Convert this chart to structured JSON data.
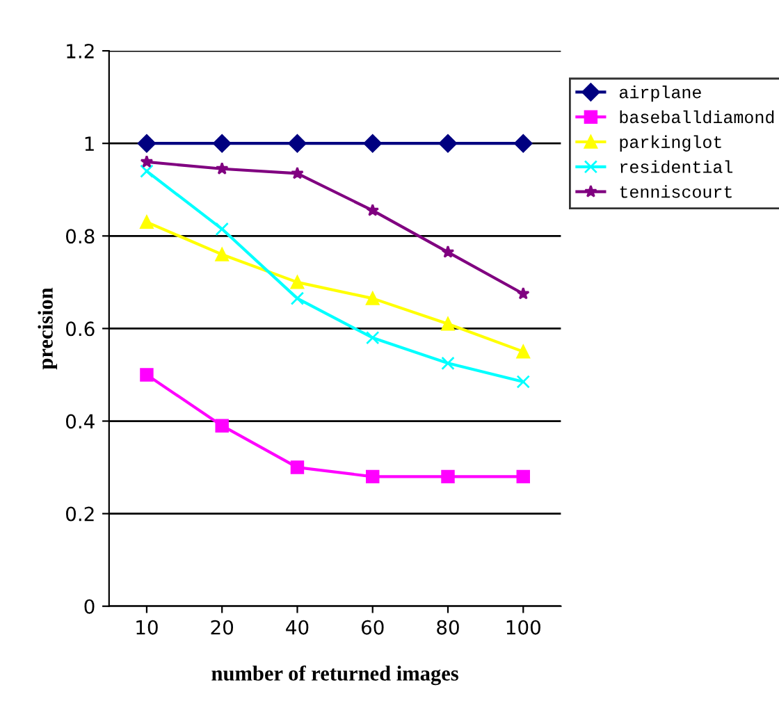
{
  "chart_data": {
    "type": "line",
    "xlabel": "number of returned images",
    "ylabel": "precision",
    "categories": [
      "10",
      "20",
      "40",
      "60",
      "80",
      "100"
    ],
    "series": [
      {
        "name": "airplane",
        "color": "#000080",
        "marker": "diamond",
        "values": [
          1,
          1,
          1,
          1,
          1,
          1
        ]
      },
      {
        "name": "baseballdiamond",
        "color": "#ff00ff",
        "marker": "square",
        "values": [
          0.5,
          0.39,
          0.3,
          0.28,
          0.28,
          0.28
        ]
      },
      {
        "name": "parkinglot",
        "color": "#ffff00",
        "marker": "triangle",
        "values": [
          0.83,
          0.76,
          0.7,
          0.665,
          0.61,
          0.55
        ]
      },
      {
        "name": "residential",
        "color": "#00ffff",
        "marker": "cross",
        "values": [
          0.94,
          0.815,
          0.665,
          0.58,
          0.525,
          0.485
        ]
      },
      {
        "name": "tenniscourt",
        "color": "#800080",
        "marker": "star",
        "values": [
          0.96,
          0.945,
          0.935,
          0.855,
          0.765,
          0.675
        ]
      }
    ],
    "ylim": [
      0,
      1.2
    ],
    "yticks": [
      0,
      0.2,
      0.4,
      0.6,
      0.8,
      1,
      1.2
    ],
    "grid": "y",
    "legend": "right"
  }
}
